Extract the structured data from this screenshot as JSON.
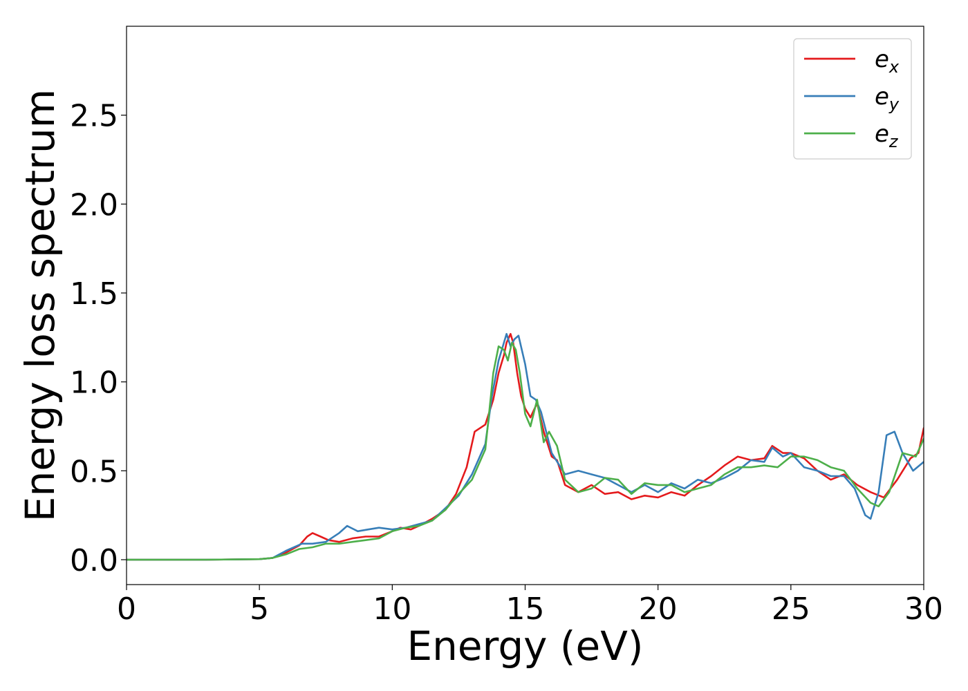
{
  "chart_data": {
    "type": "line",
    "title": "",
    "xlabel": "Energy (eV)",
    "ylabel": "Energy loss spectrum",
    "xlim": [
      0,
      30
    ],
    "ylim": [
      -0.14,
      3.0
    ],
    "xticks": [
      0,
      5,
      10,
      15,
      20,
      25,
      30
    ],
    "xtick_labels": [
      "0",
      "5",
      "10",
      "15",
      "20",
      "25",
      "30"
    ],
    "yticks": [
      0.0,
      0.5,
      1.0,
      1.5,
      2.0,
      2.5
    ],
    "ytick_labels": [
      "0.0",
      "0.5",
      "1.0",
      "1.5",
      "2.0",
      "2.5"
    ],
    "grid": false,
    "legend_position": "top-right",
    "series": [
      {
        "name": "e_x",
        "legend_base": "e",
        "legend_sub": "x",
        "color": "#e41a1c",
        "points": [
          [
            0,
            0
          ],
          [
            3,
            0
          ],
          [
            5,
            0.003
          ],
          [
            5.5,
            0.01
          ],
          [
            6,
            0.04
          ],
          [
            6.5,
            0.08
          ],
          [
            6.8,
            0.13
          ],
          [
            7,
            0.15
          ],
          [
            7.3,
            0.13
          ],
          [
            7.6,
            0.11
          ],
          [
            8,
            0.1
          ],
          [
            8.5,
            0.12
          ],
          [
            9,
            0.13
          ],
          [
            9.5,
            0.13
          ],
          [
            10,
            0.16
          ],
          [
            10.3,
            0.18
          ],
          [
            10.7,
            0.17
          ],
          [
            11,
            0.19
          ],
          [
            11.5,
            0.23
          ],
          [
            12,
            0.28
          ],
          [
            12.4,
            0.37
          ],
          [
            12.8,
            0.52
          ],
          [
            13.1,
            0.72
          ],
          [
            13.5,
            0.76
          ],
          [
            13.8,
            0.9
          ],
          [
            14,
            1.05
          ],
          [
            14.2,
            1.15
          ],
          [
            14.3,
            1.22
          ],
          [
            14.45,
            1.27
          ],
          [
            14.55,
            1.22
          ],
          [
            14.7,
            1.05
          ],
          [
            14.85,
            0.92
          ],
          [
            15,
            0.85
          ],
          [
            15.2,
            0.8
          ],
          [
            15.45,
            0.88
          ],
          [
            15.7,
            0.72
          ],
          [
            16,
            0.58
          ],
          [
            16.2,
            0.56
          ],
          [
            16.5,
            0.42
          ],
          [
            17,
            0.38
          ],
          [
            17.5,
            0.42
          ],
          [
            18,
            0.37
          ],
          [
            18.5,
            0.38
          ],
          [
            19,
            0.34
          ],
          [
            19.5,
            0.36
          ],
          [
            20,
            0.35
          ],
          [
            20.5,
            0.38
          ],
          [
            21,
            0.36
          ],
          [
            21.5,
            0.42
          ],
          [
            22,
            0.47
          ],
          [
            22.5,
            0.53
          ],
          [
            23,
            0.58
          ],
          [
            23.5,
            0.56
          ],
          [
            24,
            0.57
          ],
          [
            24.3,
            0.64
          ],
          [
            24.7,
            0.6
          ],
          [
            25,
            0.6
          ],
          [
            25.5,
            0.57
          ],
          [
            26,
            0.5
          ],
          [
            26.5,
            0.45
          ],
          [
            27,
            0.48
          ],
          [
            27.5,
            0.42
          ],
          [
            28,
            0.38
          ],
          [
            28.5,
            0.35
          ],
          [
            29,
            0.45
          ],
          [
            29.5,
            0.57
          ],
          [
            29.8,
            0.6
          ],
          [
            30,
            0.74
          ]
        ]
      },
      {
        "name": "e_y",
        "legend_base": "e",
        "legend_sub": "y",
        "color": "#377eb8",
        "points": [
          [
            0,
            0
          ],
          [
            3,
            0
          ],
          [
            5,
            0.003
          ],
          [
            5.5,
            0.01
          ],
          [
            6,
            0.05
          ],
          [
            6.6,
            0.09
          ],
          [
            7,
            0.09
          ],
          [
            7.5,
            0.1
          ],
          [
            8,
            0.15
          ],
          [
            8.3,
            0.19
          ],
          [
            8.7,
            0.16
          ],
          [
            9.1,
            0.17
          ],
          [
            9.5,
            0.18
          ],
          [
            10,
            0.17
          ],
          [
            10.5,
            0.18
          ],
          [
            11,
            0.2
          ],
          [
            11.5,
            0.22
          ],
          [
            12,
            0.29
          ],
          [
            12.5,
            0.36
          ],
          [
            13,
            0.48
          ],
          [
            13.5,
            0.65
          ],
          [
            13.75,
            0.92
          ],
          [
            14,
            1.12
          ],
          [
            14.2,
            1.22
          ],
          [
            14.3,
            1.27
          ],
          [
            14.45,
            1.2
          ],
          [
            14.6,
            1.24
          ],
          [
            14.75,
            1.26
          ],
          [
            15,
            1.1
          ],
          [
            15.2,
            0.92
          ],
          [
            15.4,
            0.9
          ],
          [
            15.6,
            0.83
          ],
          [
            16,
            0.6
          ],
          [
            16.5,
            0.48
          ],
          [
            17,
            0.5
          ],
          [
            17.5,
            0.48
          ],
          [
            18,
            0.46
          ],
          [
            18.5,
            0.42
          ],
          [
            19,
            0.38
          ],
          [
            19.5,
            0.42
          ],
          [
            20,
            0.38
          ],
          [
            20.5,
            0.43
          ],
          [
            21,
            0.4
          ],
          [
            21.5,
            0.45
          ],
          [
            22,
            0.43
          ],
          [
            22.5,
            0.46
          ],
          [
            23,
            0.5
          ],
          [
            23.5,
            0.56
          ],
          [
            24,
            0.55
          ],
          [
            24.3,
            0.63
          ],
          [
            24.7,
            0.58
          ],
          [
            25,
            0.6
          ],
          [
            25.5,
            0.52
          ],
          [
            26,
            0.5
          ],
          [
            26.5,
            0.47
          ],
          [
            27,
            0.47
          ],
          [
            27.4,
            0.4
          ],
          [
            27.8,
            0.25
          ],
          [
            28,
            0.23
          ],
          [
            28.3,
            0.38
          ],
          [
            28.6,
            0.7
          ],
          [
            28.9,
            0.72
          ],
          [
            29.2,
            0.6
          ],
          [
            29.6,
            0.5
          ],
          [
            30,
            0.55
          ]
        ]
      },
      {
        "name": "e_z",
        "legend_base": "e",
        "legend_sub": "z",
        "color": "#4daf4a",
        "points": [
          [
            0,
            0
          ],
          [
            3,
            0
          ],
          [
            5,
            0.003
          ],
          [
            5.5,
            0.01
          ],
          [
            6,
            0.03
          ],
          [
            6.5,
            0.06
          ],
          [
            7,
            0.07
          ],
          [
            7.5,
            0.09
          ],
          [
            8,
            0.09
          ],
          [
            8.5,
            0.1
          ],
          [
            9,
            0.11
          ],
          [
            9.5,
            0.12
          ],
          [
            10,
            0.16
          ],
          [
            10.5,
            0.18
          ],
          [
            11,
            0.19
          ],
          [
            11.5,
            0.22
          ],
          [
            12,
            0.28
          ],
          [
            12.5,
            0.37
          ],
          [
            13,
            0.45
          ],
          [
            13.5,
            0.62
          ],
          [
            13.8,
            1.05
          ],
          [
            14,
            1.2
          ],
          [
            14.2,
            1.18
          ],
          [
            14.35,
            1.12
          ],
          [
            14.5,
            1.22
          ],
          [
            14.65,
            1.18
          ],
          [
            14.8,
            1.05
          ],
          [
            15,
            0.82
          ],
          [
            15.2,
            0.75
          ],
          [
            15.45,
            0.9
          ],
          [
            15.7,
            0.66
          ],
          [
            15.9,
            0.72
          ],
          [
            16.2,
            0.64
          ],
          [
            16.5,
            0.45
          ],
          [
            17,
            0.38
          ],
          [
            17.5,
            0.4
          ],
          [
            18,
            0.46
          ],
          [
            18.5,
            0.45
          ],
          [
            19,
            0.37
          ],
          [
            19.5,
            0.43
          ],
          [
            20,
            0.42
          ],
          [
            20.5,
            0.42
          ],
          [
            21,
            0.38
          ],
          [
            21.5,
            0.4
          ],
          [
            22,
            0.42
          ],
          [
            22.5,
            0.48
          ],
          [
            23,
            0.52
          ],
          [
            23.5,
            0.52
          ],
          [
            24,
            0.53
          ],
          [
            24.5,
            0.52
          ],
          [
            25,
            0.58
          ],
          [
            25.5,
            0.58
          ],
          [
            26,
            0.56
          ],
          [
            26.5,
            0.52
          ],
          [
            27,
            0.5
          ],
          [
            27.5,
            0.4
          ],
          [
            28,
            0.32
          ],
          [
            28.3,
            0.3
          ],
          [
            28.7,
            0.38
          ],
          [
            29.2,
            0.6
          ],
          [
            29.7,
            0.58
          ],
          [
            30,
            0.68
          ]
        ]
      }
    ]
  }
}
